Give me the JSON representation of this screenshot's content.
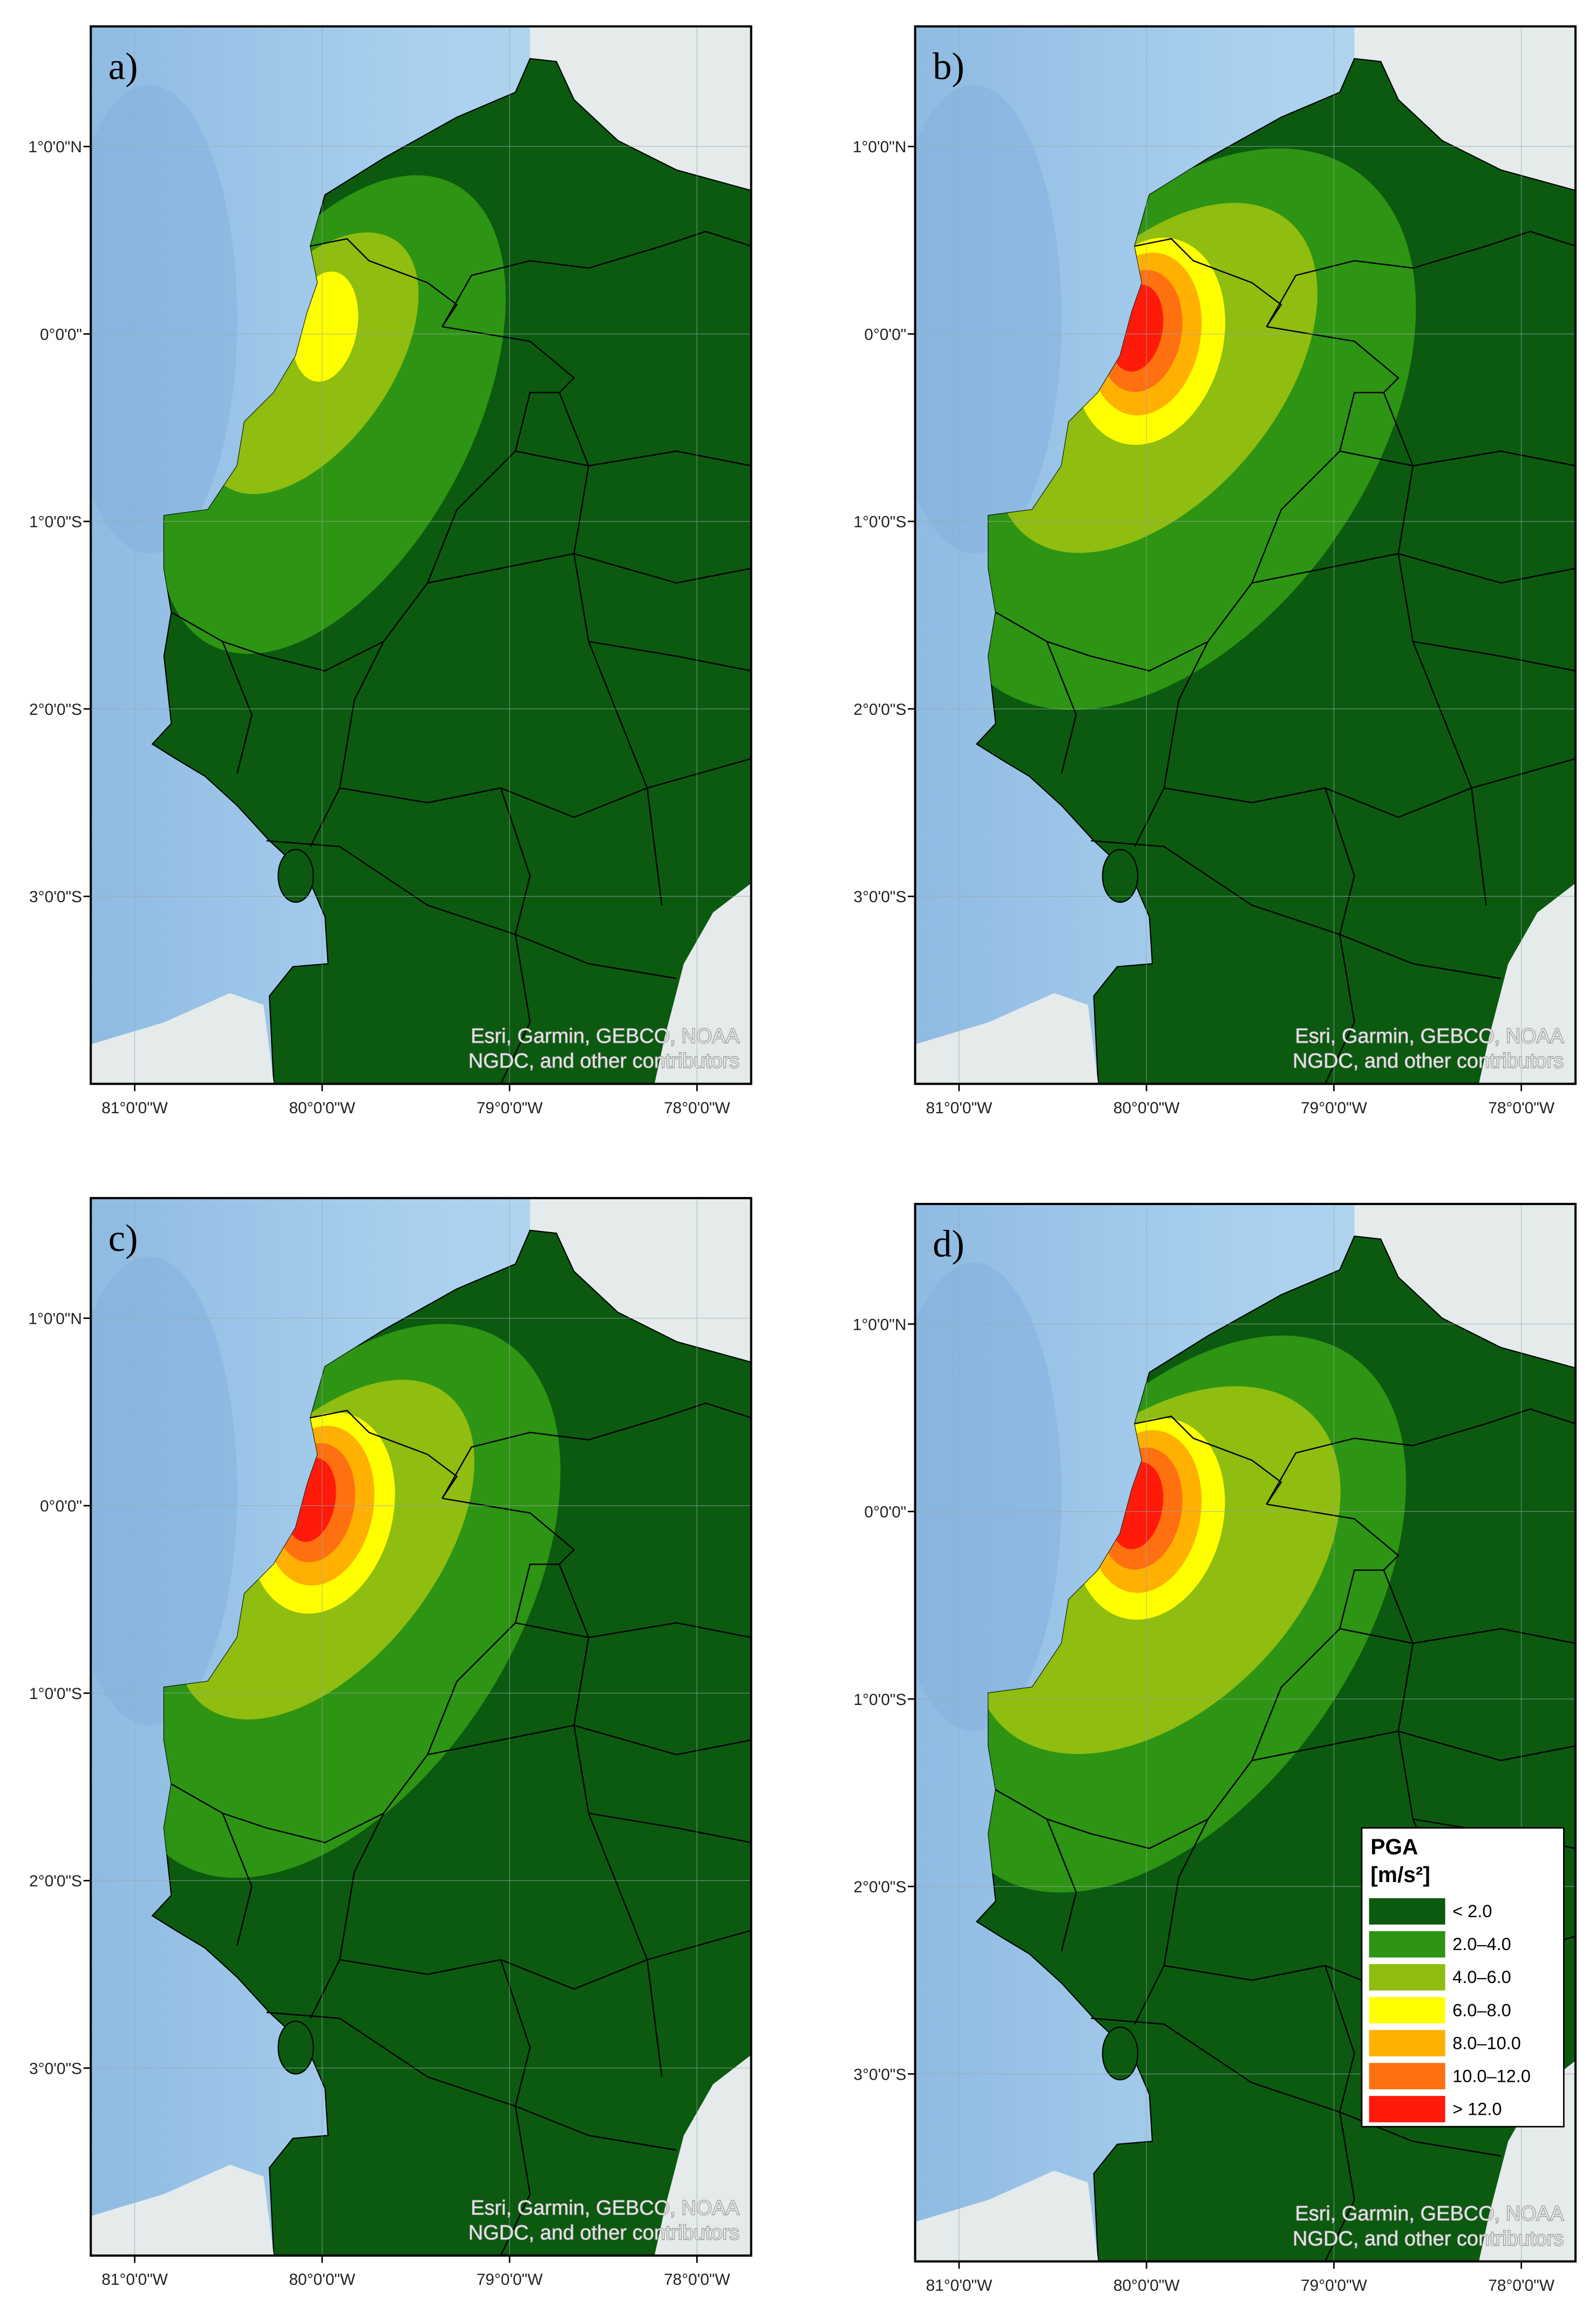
{
  "panels": [
    {
      "label": "a)"
    },
    {
      "label": "b)"
    },
    {
      "label": "c)"
    },
    {
      "label": "d)"
    }
  ],
  "lat_labels": [
    "1°0'0\"N",
    "0°0'0\"",
    "1°0'0\"S",
    "2°0'0\"S",
    "3°0'0\"S"
  ],
  "lon_labels": [
    "81°0'0\"W",
    "80°0'0\"W",
    "79°0'0\"W",
    "78°0'0\"W"
  ],
  "attribution": [
    "Esri, Garmin, GEBCO, NOAA",
    "NGDC, and other contributors"
  ],
  "legend": {
    "title": "PGA",
    "unit": "[m/s²]",
    "items": [
      {
        "label": "< 2.0",
        "color": "#0b5a10"
      },
      {
        "label": "2.0–4.0",
        "color": "#2e9413"
      },
      {
        "label": "4.0–6.0",
        "color": "#8fbd10"
      },
      {
        "label": "6.0–8.0",
        "color": "#ffff00"
      },
      {
        "label": "8.0–10.0",
        "color": "#ffb000"
      },
      {
        "label": "10.0–12.0",
        "color": "#ff7010"
      },
      {
        "label": "> 12.0",
        "color": "#ff1a0a"
      }
    ]
  }
}
